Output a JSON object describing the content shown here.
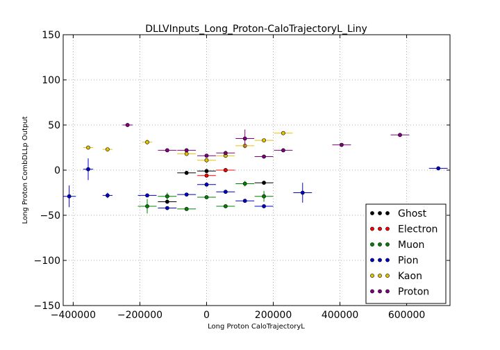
{
  "chart_data": {
    "type": "scatter",
    "title": "DLLVInputs_Long_Proton-CaloTrajectoryL_Liny",
    "xlabel": "Long Proton CaloTrajectoryL",
    "ylabel": "Long Proton CombDLLp Output",
    "xlim": [
      -430000,
      730000
    ],
    "ylim": [
      -150,
      150
    ],
    "xticks": [
      -400000,
      -200000,
      0,
      200000,
      400000,
      600000
    ],
    "xtick_labels": [
      "−400000",
      "−200000",
      "0",
      "200000",
      "400000",
      "600000"
    ],
    "yticks": [
      -150,
      -100,
      -50,
      0,
      50,
      100,
      150
    ],
    "ytick_labels": [
      "−150",
      "−100",
      "−50",
      "0",
      "50",
      "100",
      "150"
    ],
    "grid": true,
    "legend_position": "bottom-right",
    "series": [
      {
        "name": "Ghost",
        "color": "#000000",
        "points": [
          {
            "x": -60000,
            "y": -3,
            "xerr": 28000,
            "yerr": 0
          },
          {
            "x": 0,
            "y": -1,
            "xerr": 28000,
            "yerr": 0
          },
          {
            "x": 57000,
            "y": 0,
            "xerr": 28000,
            "yerr": 0
          },
          {
            "x": 172000,
            "y": -14,
            "xerr": 28000,
            "yerr": 0
          },
          {
            "x": -118000,
            "y": -35,
            "xerr": 28000,
            "yerr": 0
          }
        ]
      },
      {
        "name": "Electron",
        "color": "#ff0000",
        "points": [
          {
            "x": 0,
            "y": -6,
            "xerr": 28000,
            "yerr": 0
          },
          {
            "x": 57000,
            "y": 0,
            "xerr": 28000,
            "yerr": 0
          }
        ]
      },
      {
        "name": "Muon",
        "color": "#008000",
        "points": [
          {
            "x": -178000,
            "y": -40,
            "xerr": 28000,
            "yerr": 8
          },
          {
            "x": -118000,
            "y": -29,
            "xerr": 28000,
            "yerr": 4
          },
          {
            "x": -60000,
            "y": -43,
            "xerr": 28000,
            "yerr": 0
          },
          {
            "x": 0,
            "y": -30,
            "xerr": 28000,
            "yerr": 0
          },
          {
            "x": 57000,
            "y": -40,
            "xerr": 28000,
            "yerr": 0
          },
          {
            "x": 115000,
            "y": -15,
            "xerr": 28000,
            "yerr": 3
          },
          {
            "x": 172000,
            "y": -29,
            "xerr": 28000,
            "yerr": 6
          }
        ]
      },
      {
        "name": "Pion",
        "color": "#0000cc",
        "points": [
          {
            "x": -412000,
            "y": -29,
            "xerr": 20000,
            "yerr": 12
          },
          {
            "x": -355000,
            "y": 1,
            "xerr": 15000,
            "yerr": 12
          },
          {
            "x": -297000,
            "y": -28,
            "xerr": 15000,
            "yerr": 3
          },
          {
            "x": -178000,
            "y": -28,
            "xerr": 28000,
            "yerr": 2
          },
          {
            "x": -118000,
            "y": -42,
            "xerr": 28000,
            "yerr": 0
          },
          {
            "x": -60000,
            "y": -27,
            "xerr": 28000,
            "yerr": 0
          },
          {
            "x": 0,
            "y": -16,
            "xerr": 28000,
            "yerr": 0
          },
          {
            "x": 57000,
            "y": -24,
            "xerr": 28000,
            "yerr": 0
          },
          {
            "x": 115000,
            "y": -34,
            "xerr": 28000,
            "yerr": 0
          },
          {
            "x": 172000,
            "y": -40,
            "xerr": 28000,
            "yerr": 2
          },
          {
            "x": 288000,
            "y": -25,
            "xerr": 28000,
            "yerr": 11
          },
          {
            "x": 695000,
            "y": 2,
            "xerr": 28000,
            "yerr": 0
          }
        ]
      },
      {
        "name": "Kaon",
        "color": "#e6c200",
        "points": [
          {
            "x": -355000,
            "y": 25,
            "xerr": 15000,
            "yerr": 0
          },
          {
            "x": -297000,
            "y": 23,
            "xerr": 15000,
            "yerr": 0
          },
          {
            "x": -178000,
            "y": 31,
            "xerr": 15000,
            "yerr": 3
          },
          {
            "x": -60000,
            "y": 18,
            "xerr": 28000,
            "yerr": 0
          },
          {
            "x": 0,
            "y": 11,
            "xerr": 28000,
            "yerr": 0
          },
          {
            "x": 57000,
            "y": 16,
            "xerr": 28000,
            "yerr": 0
          },
          {
            "x": 115000,
            "y": 27,
            "xerr": 28000,
            "yerr": 3
          },
          {
            "x": 172000,
            "y": 33,
            "xerr": 28000,
            "yerr": 0
          },
          {
            "x": 230000,
            "y": 41,
            "xerr": 28000,
            "yerr": 0
          }
        ]
      },
      {
        "name": "Proton",
        "color": "#800080",
        "points": [
          {
            "x": -237000,
            "y": 50,
            "xerr": 15000,
            "yerr": 0
          },
          {
            "x": -118000,
            "y": 22,
            "xerr": 28000,
            "yerr": 0
          },
          {
            "x": -60000,
            "y": 22,
            "xerr": 28000,
            "yerr": 0
          },
          {
            "x": 0,
            "y": 16,
            "xerr": 28000,
            "yerr": 0
          },
          {
            "x": 57000,
            "y": 19,
            "xerr": 28000,
            "yerr": 0
          },
          {
            "x": 115000,
            "y": 35,
            "xerr": 28000,
            "yerr": 10
          },
          {
            "x": 172000,
            "y": 15,
            "xerr": 28000,
            "yerr": 2
          },
          {
            "x": 230000,
            "y": 22,
            "xerr": 28000,
            "yerr": 0
          },
          {
            "x": 405000,
            "y": 28,
            "xerr": 28000,
            "yerr": 0
          },
          {
            "x": 580000,
            "y": 39,
            "xerr": 28000,
            "yerr": 0
          }
        ]
      }
    ]
  }
}
